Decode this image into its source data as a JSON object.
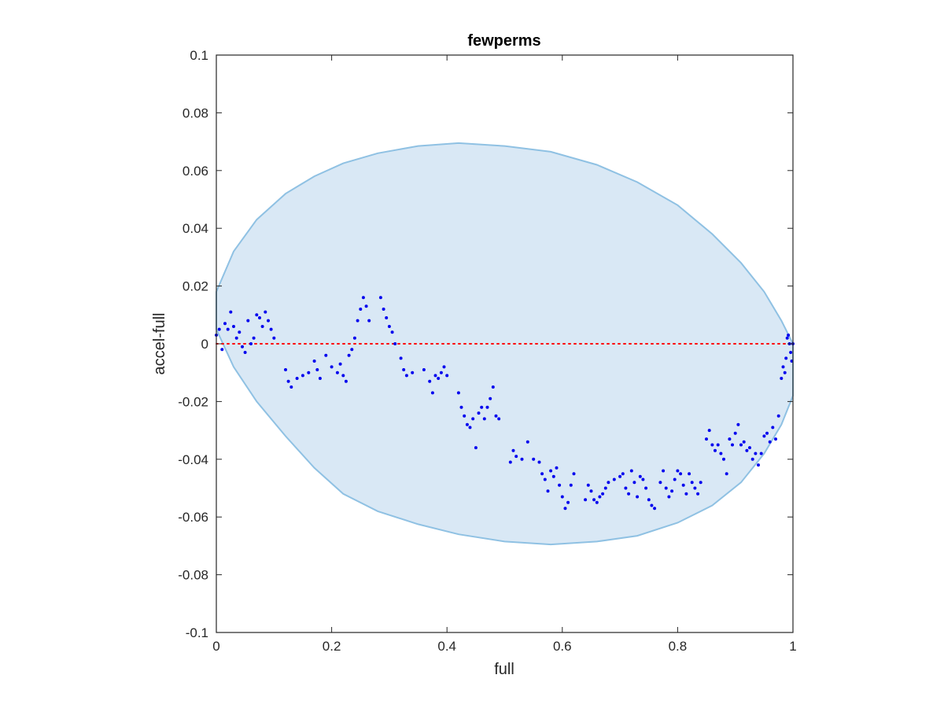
{
  "chart_data": {
    "type": "scatter",
    "title": "fewperms",
    "xlabel": "full",
    "ylabel": "accel-full",
    "xlim": [
      0,
      1
    ],
    "ylim": [
      -0.1,
      0.1
    ],
    "xticks": [
      "0",
      "0.2",
      "0.4",
      "0.6",
      "0.8",
      "1"
    ],
    "yticks": [
      "-0.1",
      "-0.08",
      "-0.06",
      "-0.04",
      "-0.02",
      "0",
      "0.02",
      "0.04",
      "0.06",
      "0.08",
      "0.1"
    ],
    "grid": false,
    "legend": "none",
    "reference_line": {
      "y": 0,
      "style": "dotted",
      "color": "#ff0000"
    },
    "shaded_region": {
      "shape": "ellipse",
      "points": [
        [
          0.0,
          0.018
        ],
        [
          0.03,
          0.032
        ],
        [
          0.07,
          0.043
        ],
        [
          0.12,
          0.052
        ],
        [
          0.17,
          0.058
        ],
        [
          0.22,
          0.0625
        ],
        [
          0.28,
          0.066
        ],
        [
          0.35,
          0.0685
        ],
        [
          0.42,
          0.0695
        ],
        [
          0.5,
          0.0685
        ],
        [
          0.58,
          0.0665
        ],
        [
          0.66,
          0.062
        ],
        [
          0.73,
          0.056
        ],
        [
          0.8,
          0.048
        ],
        [
          0.86,
          0.038
        ],
        [
          0.91,
          0.028
        ],
        [
          0.95,
          0.018
        ],
        [
          0.98,
          0.008
        ],
        [
          1.0,
          0.0
        ],
        [
          1.0,
          -0.018
        ],
        [
          0.98,
          -0.028
        ],
        [
          0.95,
          -0.038
        ],
        [
          0.91,
          -0.048
        ],
        [
          0.86,
          -0.056
        ],
        [
          0.8,
          -0.062
        ],
        [
          0.73,
          -0.0665
        ],
        [
          0.66,
          -0.0685
        ],
        [
          0.58,
          -0.0695
        ],
        [
          0.5,
          -0.0685
        ],
        [
          0.42,
          -0.066
        ],
        [
          0.35,
          -0.0625
        ],
        [
          0.28,
          -0.058
        ],
        [
          0.22,
          -0.052
        ],
        [
          0.17,
          -0.043
        ],
        [
          0.12,
          -0.032
        ],
        [
          0.07,
          -0.02
        ],
        [
          0.03,
          -0.008
        ],
        [
          0.0,
          0.005
        ]
      ],
      "fill": "#d9e8f5",
      "stroke": "#8fc1e3"
    },
    "series": [
      {
        "color": "#0000ee",
        "x": [
          0.0,
          0.005,
          0.01,
          0.015,
          0.02,
          0.025,
          0.03,
          0.035,
          0.04,
          0.045,
          0.05,
          0.055,
          0.06,
          0.065,
          0.07,
          0.075,
          0.08,
          0.085,
          0.09,
          0.095,
          0.1,
          0.12,
          0.125,
          0.13,
          0.14,
          0.15,
          0.16,
          0.17,
          0.175,
          0.18,
          0.19,
          0.2,
          0.21,
          0.215,
          0.22,
          0.225,
          0.23,
          0.235,
          0.24,
          0.245,
          0.25,
          0.255,
          0.26,
          0.265,
          0.285,
          0.29,
          0.295,
          0.3,
          0.305,
          0.31,
          0.32,
          0.325,
          0.33,
          0.34,
          0.36,
          0.37,
          0.375,
          0.38,
          0.385,
          0.39,
          0.395,
          0.4,
          0.42,
          0.425,
          0.43,
          0.435,
          0.44,
          0.445,
          0.45,
          0.455,
          0.46,
          0.465,
          0.47,
          0.475,
          0.48,
          0.485,
          0.49,
          0.51,
          0.515,
          0.52,
          0.53,
          0.54,
          0.55,
          0.56,
          0.565,
          0.57,
          0.575,
          0.58,
          0.585,
          0.59,
          0.595,
          0.6,
          0.605,
          0.61,
          0.615,
          0.62,
          0.64,
          0.645,
          0.65,
          0.655,
          0.66,
          0.665,
          0.67,
          0.675,
          0.68,
          0.69,
          0.7,
          0.705,
          0.71,
          0.715,
          0.72,
          0.725,
          0.73,
          0.735,
          0.74,
          0.745,
          0.75,
          0.755,
          0.76,
          0.77,
          0.775,
          0.78,
          0.785,
          0.79,
          0.795,
          0.8,
          0.805,
          0.81,
          0.815,
          0.82,
          0.825,
          0.83,
          0.835,
          0.84,
          0.85,
          0.855,
          0.86,
          0.865,
          0.87,
          0.875,
          0.88,
          0.885,
          0.89,
          0.895,
          0.9,
          0.905,
          0.91,
          0.915,
          0.92,
          0.925,
          0.93,
          0.935,
          0.94,
          0.945,
          0.95,
          0.955,
          0.96,
          0.965,
          0.97,
          0.975,
          0.98,
          0.983,
          0.986,
          0.988,
          0.99,
          0.992,
          0.994,
          0.996,
          0.998,
          1.0
        ],
        "y": [
          0.003,
          0.005,
          -0.002,
          0.007,
          0.005,
          0.011,
          0.006,
          0.002,
          0.004,
          -0.001,
          -0.003,
          0.008,
          0.0,
          0.002,
          0.01,
          0.009,
          0.006,
          0.011,
          0.008,
          0.005,
          0.002,
          -0.009,
          -0.013,
          -0.015,
          -0.012,
          -0.011,
          -0.01,
          -0.006,
          -0.009,
          -0.012,
          -0.004,
          -0.008,
          -0.01,
          -0.007,
          -0.011,
          -0.013,
          -0.004,
          -0.002,
          0.002,
          0.008,
          0.012,
          0.016,
          0.013,
          0.008,
          0.016,
          0.012,
          0.009,
          0.006,
          0.004,
          0.0,
          -0.005,
          -0.009,
          -0.011,
          -0.01,
          -0.009,
          -0.013,
          -0.017,
          -0.011,
          -0.012,
          -0.01,
          -0.008,
          -0.011,
          -0.017,
          -0.022,
          -0.025,
          -0.028,
          -0.029,
          -0.026,
          -0.036,
          -0.024,
          -0.022,
          -0.026,
          -0.022,
          -0.019,
          -0.015,
          -0.025,
          -0.026,
          -0.041,
          -0.037,
          -0.039,
          -0.04,
          -0.034,
          -0.04,
          -0.041,
          -0.045,
          -0.047,
          -0.051,
          -0.044,
          -0.046,
          -0.043,
          -0.049,
          -0.053,
          -0.057,
          -0.055,
          -0.049,
          -0.045,
          -0.054,
          -0.049,
          -0.051,
          -0.054,
          -0.055,
          -0.053,
          -0.052,
          -0.05,
          -0.048,
          -0.047,
          -0.046,
          -0.045,
          -0.05,
          -0.052,
          -0.044,
          -0.048,
          -0.053,
          -0.046,
          -0.047,
          -0.05,
          -0.054,
          -0.056,
          -0.057,
          -0.048,
          -0.044,
          -0.05,
          -0.053,
          -0.051,
          -0.047,
          -0.044,
          -0.045,
          -0.049,
          -0.052,
          -0.045,
          -0.048,
          -0.05,
          -0.052,
          -0.048,
          -0.033,
          -0.03,
          -0.035,
          -0.037,
          -0.035,
          -0.038,
          -0.04,
          -0.045,
          -0.033,
          -0.035,
          -0.031,
          -0.028,
          -0.035,
          -0.034,
          -0.037,
          -0.036,
          -0.04,
          -0.038,
          -0.042,
          -0.038,
          -0.032,
          -0.031,
          -0.034,
          -0.029,
          -0.033,
          -0.025,
          -0.012,
          -0.008,
          -0.01,
          -0.005,
          0.002,
          0.003,
          0.0,
          -0.003,
          -0.006,
          0.0
        ]
      }
    ]
  }
}
